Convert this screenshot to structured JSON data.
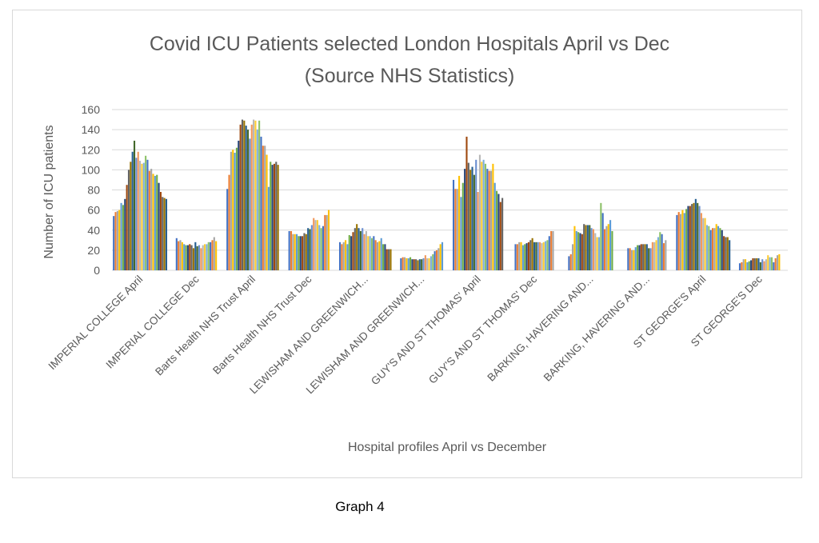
{
  "chart_data": {
    "type": "bar",
    "title": "Covid ICU Patients selected London Hospitals April vs Dec",
    "subtitle": "(Source NHS Statistics)",
    "xlabel": "Hospital profiles April vs December",
    "ylabel": "Number of ICU patients",
    "ylim": [
      0,
      160
    ],
    "yticks": [
      "0",
      "20",
      "40",
      "60",
      "80",
      "100",
      "120",
      "140",
      "160"
    ],
    "grid": true,
    "legend": "none",
    "categories": [
      "IMPERIAL COLLEGE April",
      "IMPERIAL COLLEGE  Dec",
      "Barts Health NHS Trust April",
      "Barts Health NHS Trust Dec",
      "LEWISHAM AND GREENWICH...",
      "LEWISHAM AND GREENWICH...",
      "GUY'S AND ST THOMAS'  April",
      "GUY'S AND ST THOMAS'  Dec",
      "BARKING, HAVERING AND...",
      "BARKING, HAVERING AND...",
      "ST GEORGE'S April",
      "ST GEORGE'S  Dec"
    ],
    "values": [
      [
        54,
        58,
        59,
        60,
        67,
        65,
        71,
        85,
        100,
        108,
        118,
        129,
        112,
        118,
        109,
        106,
        107,
        114,
        110,
        99,
        101,
        96,
        94,
        95,
        87,
        78,
        73,
        72,
        71
      ],
      [
        32,
        29,
        30,
        28,
        26,
        25,
        25,
        26,
        25,
        22,
        28,
        24,
        25,
        22,
        25,
        26,
        26,
        28,
        28,
        30,
        33,
        29
      ],
      [
        81,
        95,
        118,
        120,
        117,
        122,
        129,
        145,
        150,
        149,
        144,
        140,
        131,
        145,
        150,
        149,
        140,
        149,
        133,
        124,
        124,
        115,
        83,
        108,
        105,
        106,
        108,
        105
      ],
      [
        39,
        39,
        36,
        36,
        36,
        34,
        34,
        34,
        37,
        36,
        42,
        41,
        45,
        52,
        50,
        50,
        45,
        42,
        44,
        55,
        55,
        60
      ],
      [
        28,
        26,
        28,
        30,
        26,
        35,
        34,
        38,
        42,
        46,
        42,
        39,
        42,
        36,
        39,
        34,
        34,
        32,
        34,
        30,
        28,
        29,
        32,
        26,
        26,
        21,
        21,
        21
      ],
      [
        12,
        13,
        13,
        12,
        12,
        13,
        11,
        11,
        11,
        10,
        11,
        11,
        12,
        15,
        12,
        12,
        14,
        16,
        19,
        20,
        22,
        26,
        28
      ],
      [
        90,
        81,
        81,
        94,
        73,
        87,
        101,
        133,
        107,
        100,
        103,
        95,
        110,
        78,
        115,
        108,
        110,
        106,
        101,
        99,
        99,
        106,
        87,
        79,
        76,
        68,
        72
      ],
      [
        26,
        26,
        28,
        28,
        25,
        26,
        27,
        28,
        30,
        32,
        28,
        28,
        28,
        28,
        27,
        28,
        29,
        30,
        34,
        39,
        39
      ],
      [
        14,
        16,
        26,
        44,
        39,
        38,
        37,
        36,
        46,
        45,
        45,
        45,
        42,
        41,
        37,
        33,
        33,
        67,
        57,
        41,
        44,
        46,
        50,
        39
      ],
      [
        22,
        22,
        20,
        20,
        23,
        25,
        25,
        26,
        26,
        26,
        26,
        22,
        22,
        28,
        28,
        30,
        33,
        38,
        36,
        27,
        30
      ],
      [
        55,
        58,
        56,
        60,
        57,
        61,
        64,
        64,
        66,
        67,
        71,
        67,
        64,
        57,
        52,
        52,
        45,
        44,
        40,
        42,
        42,
        46,
        44,
        42,
        40,
        34,
        33,
        33,
        30
      ],
      [
        7,
        8,
        11,
        11,
        8,
        9,
        10,
        12,
        12,
        12,
        12,
        8,
        11,
        9,
        11,
        15,
        13,
        13,
        8,
        12,
        15,
        16
      ]
    ]
  },
  "caption": "Graph 4",
  "colors": [
    "#4472C4",
    "#ED7D31",
    "#A5A5A5",
    "#FFC000",
    "#5B9BD5",
    "#70AD47",
    "#264478",
    "#9E480E",
    "#636363",
    "#997300",
    "#255E91",
    "#43682B",
    "#698ED0",
    "#F1975A",
    "#B7B7B7",
    "#FFCD33",
    "#7CAFDD",
    "#8CC168"
  ]
}
